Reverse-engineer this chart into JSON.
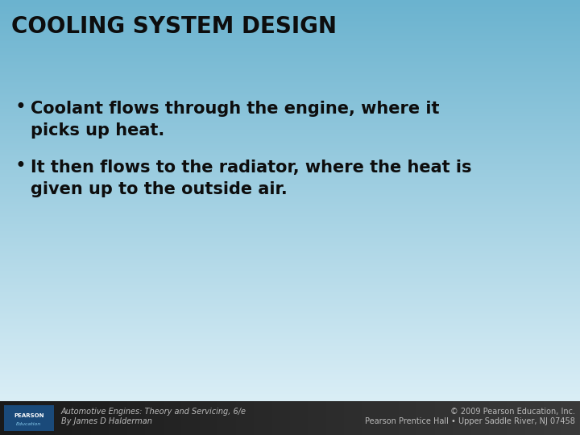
{
  "title": "COOLING SYSTEM DESIGN",
  "bullet1_line1": "Coolant flows through the engine, where it",
  "bullet1_line2": "picks up heat.",
  "bullet2_line1": "It then flows to the radiator, where the heat is",
  "bullet2_line2": "given up to the outside air.",
  "footer_left_line1": "Automotive Engines: Theory and Servicing, 6/e",
  "footer_left_line2": "By James D Halderman",
  "footer_right_line1": "© 2009 Pearson Education, Inc.",
  "footer_right_line2": "Pearson Prentice Hall • Upper Saddle River, NJ 07458",
  "bg_top_color": "#6bb3cf",
  "bg_bottom_color": "#daeef6",
  "footer_bg_color": "#2a2a2a",
  "title_color": "#0d0d0d",
  "bullet_color": "#0d0d0d",
  "footer_text_color": "#bbbbbb",
  "title_fontsize": 20,
  "bullet_fontsize": 15,
  "footer_fontsize": 7,
  "pearson_box_color": "#1a4a7a",
  "pearson_text_color": "#ffffff"
}
